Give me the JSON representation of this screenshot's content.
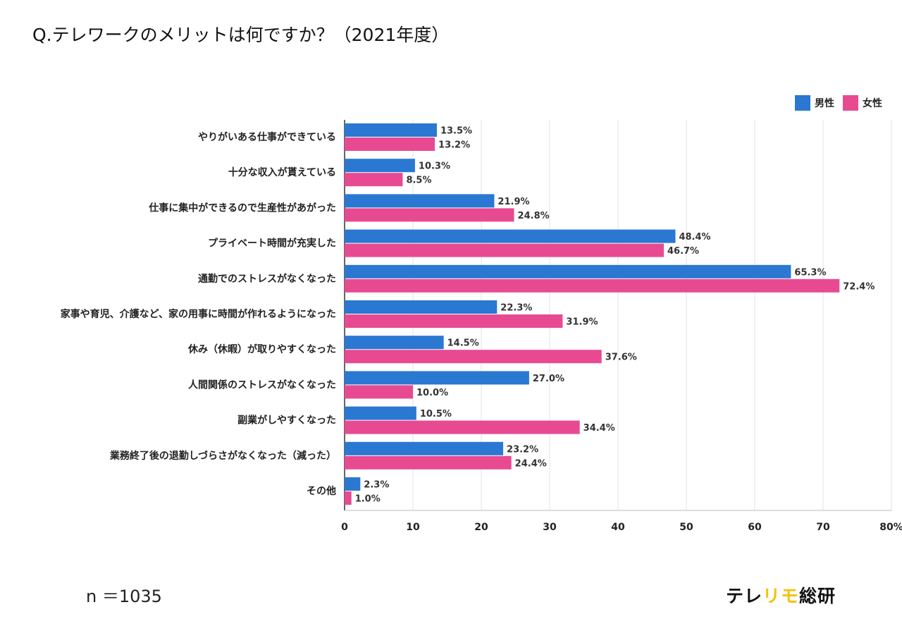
{
  "title": "Q.テレワークのメリットは何ですか？（2021年度）",
  "sample_size": "n ＝1035",
  "brand": {
    "part1": "テレ",
    "part2": "リモ",
    "part3": "総研"
  },
  "legend": [
    {
      "label": "男性",
      "color": "#2a78d1"
    },
    {
      "label": "女性",
      "color": "#e84a92"
    }
  ],
  "chart_data": {
    "type": "bar",
    "orientation": "horizontal",
    "title": "Q.テレワークのメリットは何ですか？（2021年度）",
    "categories": [
      "やりがいある仕事ができている",
      "十分な収入が貰えている",
      "仕事に集中ができるので生産性があがった",
      "プライベート時間が充実した",
      "通勤でのストレスがなくなった",
      "家事や育児、介護など、家の用事に時間が作れるようになった",
      "休み（休暇）が取りやすくなった",
      "人間関係のストレスがなくなった",
      "副業がしやすくなった",
      "業務終了後の退勤しづらさがなくなった（減った）",
      "その他"
    ],
    "series": [
      {
        "name": "男性",
        "color": "#2a78d1",
        "values": [
          13.5,
          10.3,
          21.9,
          48.4,
          65.3,
          22.3,
          14.5,
          27.0,
          10.5,
          23.2,
          2.3
        ],
        "labels": [
          "13.5%",
          "10.3%",
          "21.9%",
          "48.4%",
          "65.3%",
          "22.3%",
          "14.5%",
          "27.0%",
          "10.5%",
          "23.2%",
          "2.3%"
        ]
      },
      {
        "name": "女性",
        "color": "#e84a92",
        "values": [
          13.2,
          8.5,
          24.8,
          46.7,
          72.4,
          31.9,
          37.6,
          10.0,
          34.4,
          24.4,
          1.0
        ],
        "labels": [
          "13.2%",
          "8.5%",
          "24.8%",
          "46.7%",
          "72.4%",
          "31.9%",
          "37.6%",
          "10.0%",
          "34.4%",
          "24.4%",
          "1.0%"
        ]
      }
    ],
    "xlim": [
      0,
      80
    ],
    "xticks": [
      "0",
      "10",
      "20",
      "30",
      "40",
      "50",
      "60",
      "70",
      "80%"
    ],
    "grid": true,
    "legend_position": "top-right"
  }
}
